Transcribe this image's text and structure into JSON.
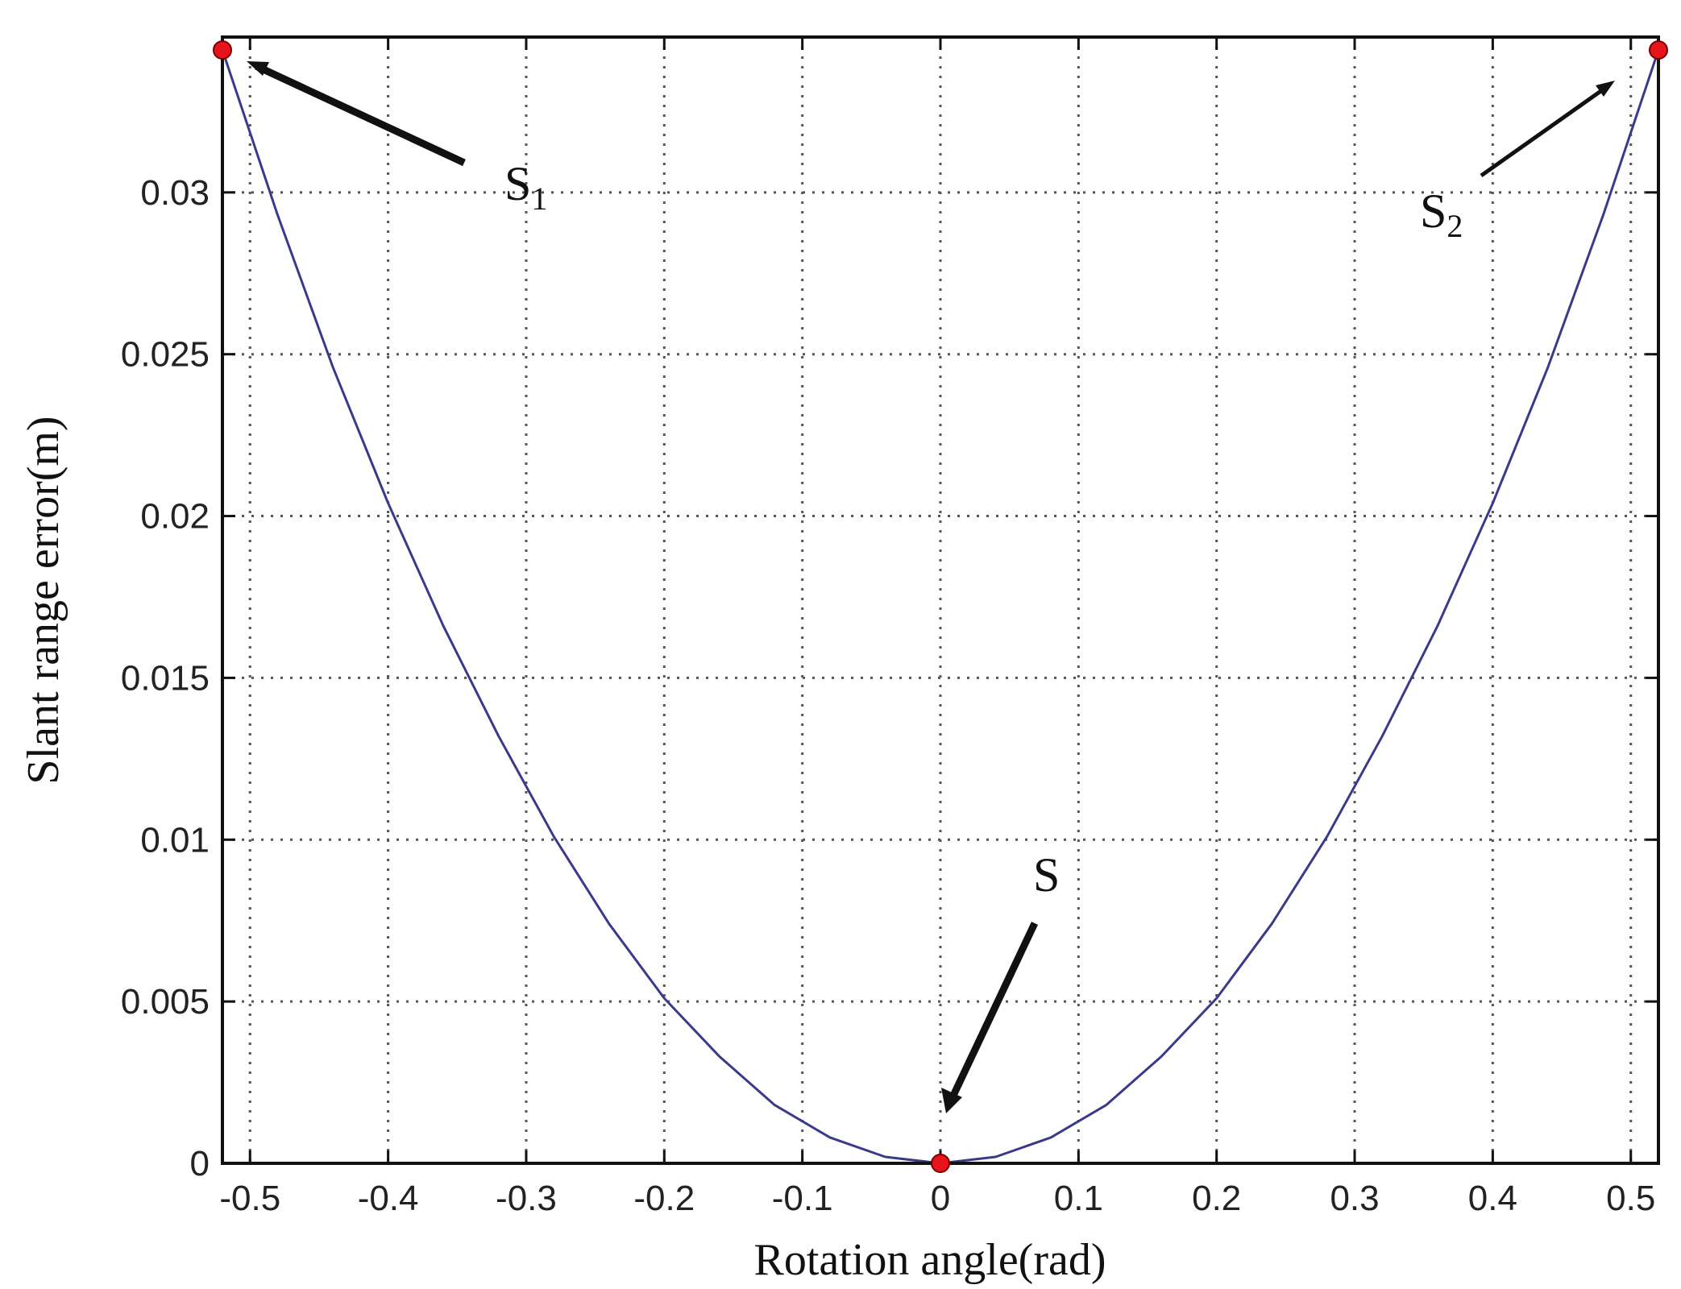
{
  "chart_data": {
    "type": "line",
    "xlabel": "Rotation angle(rad)",
    "ylabel": "Slant range error(m)",
    "xlim": [
      -0.52,
      0.52
    ],
    "ylim": [
      0,
      0.0348
    ],
    "xticks": [
      -0.5,
      -0.4,
      -0.3,
      -0.2,
      -0.1,
      0,
      0.1,
      0.2,
      0.3,
      0.4,
      0.5
    ],
    "xtick_labels": [
      "-0.5",
      "-0.4",
      "-0.3",
      "-0.2",
      "-0.1",
      "0",
      "0.1",
      "0.2",
      "0.3",
      "0.4",
      "0.5"
    ],
    "yticks": [
      0,
      0.005,
      0.01,
      0.015,
      0.02,
      0.025,
      0.03
    ],
    "ytick_labels": [
      "0",
      "0.005",
      "0.01",
      "0.015",
      "0.02",
      "0.025",
      "0.03"
    ],
    "grid": true,
    "series": [
      {
        "color": "#3a3a8c",
        "x": [
          -0.52,
          -0.48,
          -0.44,
          -0.4,
          -0.36,
          -0.32,
          -0.28,
          -0.24,
          -0.2,
          -0.16,
          -0.12,
          -0.08,
          -0.04,
          0,
          0.04,
          0.08,
          0.12,
          0.16,
          0.2,
          0.24,
          0.28,
          0.32,
          0.36,
          0.4,
          0.44,
          0.48,
          0.52
        ],
        "y": [
          0.0344,
          0.0293,
          0.0246,
          0.0204,
          0.0166,
          0.0132,
          0.0101,
          0.0074,
          0.0051,
          0.0033,
          0.0018,
          0.0008,
          0.0002,
          0.0,
          0.0002,
          0.0008,
          0.0018,
          0.0033,
          0.0051,
          0.0074,
          0.0101,
          0.0132,
          0.0166,
          0.0204,
          0.0246,
          0.0293,
          0.0344
        ]
      }
    ],
    "markers": {
      "color": "#e8141c",
      "points": [
        {
          "x": -0.52,
          "y": 0.0344
        },
        {
          "x": 0.0,
          "y": 0.0
        },
        {
          "x": 0.52,
          "y": 0.0344
        }
      ]
    },
    "annotations": [
      {
        "label": "S",
        "sub": "1",
        "arrow_to": {
          "x": -0.505,
          "y": 0.0341
        }
      },
      {
        "label": "S",
        "sub": "2",
        "arrow_to": {
          "x": 0.495,
          "y": 0.0334
        }
      },
      {
        "label": "S",
        "sub": "",
        "arrow_to": {
          "x": 0.005,
          "y": 0.0016
        }
      }
    ]
  }
}
